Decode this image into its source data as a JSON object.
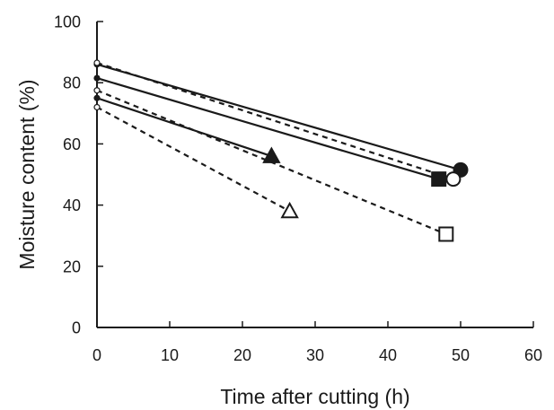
{
  "chart_data": {
    "type": "scatter",
    "title": "",
    "xlabel": "Time after cutting (h)",
    "ylabel": "Moisture content (%)",
    "xlim": [
      0,
      60
    ],
    "ylim": [
      0,
      100
    ],
    "x_ticks": [
      0,
      10,
      20,
      30,
      40,
      50,
      60
    ],
    "y_ticks": [
      0,
      20,
      40,
      60,
      80,
      100
    ],
    "grid": false,
    "legend": "none",
    "series": [
      {
        "marker": "filled-circle",
        "line_style": "solid",
        "x": [
          0,
          50
        ],
        "y": [
          86,
          51.5
        ]
      },
      {
        "marker": "filled-square",
        "line_style": "solid",
        "x": [
          0,
          47
        ],
        "y": [
          81.5,
          48.5
        ]
      },
      {
        "marker": "filled-triangle",
        "line_style": "solid",
        "x": [
          0,
          24
        ],
        "y": [
          75,
          56
        ]
      },
      {
        "marker": "open-circle",
        "line_style": "dashed",
        "x": [
          0,
          49
        ],
        "y": [
          86.5,
          48.5
        ]
      },
      {
        "marker": "open-square",
        "line_style": "dashed",
        "x": [
          0,
          48
        ],
        "y": [
          77.5,
          30.5
        ]
      },
      {
        "marker": "open-triangle",
        "line_style": "dashed",
        "x": [
          0,
          26.5
        ],
        "y": [
          72,
          38
        ]
      }
    ]
  }
}
